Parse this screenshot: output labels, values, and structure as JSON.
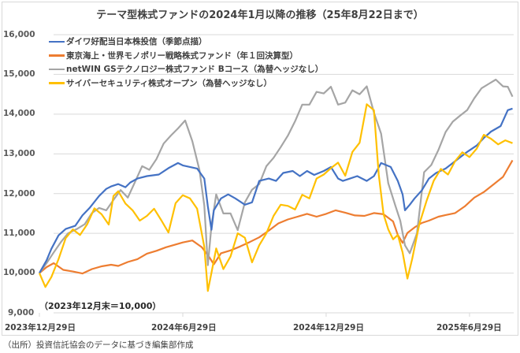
{
  "chart_data": {
    "type": "line",
    "title": "テーマ型株式ファンドの2024年1月以降の推移（25年8月22日まで）",
    "xlabel": "",
    "ylabel": "",
    "ylim": [
      9000,
      16000
    ],
    "yticks": [
      16000,
      15000,
      14000,
      13000,
      12000,
      11000,
      10000,
      9000
    ],
    "ytick_labels": [
      "16,000",
      "15,000",
      "14,000",
      "13,000",
      "12,000",
      "11,000",
      "10,000",
      "9,000"
    ],
    "xlim_months": [
      0,
      19.8
    ],
    "xticks_months": [
      0,
      6,
      12,
      18
    ],
    "xtick_labels": [
      "2023年12月29日",
      "2024年6月29日",
      "2024年12月29日",
      "2025年6月29日"
    ],
    "grid": true,
    "legend_position": "top-left",
    "annotation": "（2023年12月末＝10,000）",
    "x_unit": "months since 2023-12-29",
    "series": [
      {
        "name": "ダイワ好配当日本株投信（季節点描）",
        "color": "#4472c4",
        "x": [
          0,
          0.3,
          0.5,
          0.8,
          1.1,
          1.5,
          1.8,
          2.1,
          2.5,
          2.8,
          3.0,
          3.3,
          3.6,
          3.8,
          4.1,
          4.5,
          5.0,
          5.4,
          5.8,
          6.0,
          6.3,
          6.6,
          6.9,
          7.05,
          7.2,
          7.3,
          7.6,
          7.9,
          8.2,
          8.6,
          8.9,
          9.2,
          9.6,
          9.9,
          10.2,
          10.6,
          10.9,
          11.2,
          11.5,
          11.9,
          12.2,
          12.5,
          12.7,
          13.0,
          13.3,
          13.7,
          14.0,
          14.3,
          14.7,
          15.0,
          15.2,
          15.3,
          15.5,
          15.7,
          16.0,
          16.3,
          16.6,
          17.0,
          17.3,
          17.6,
          17.9,
          18.3,
          18.6,
          18.9,
          19.3,
          19.6,
          19.8
        ],
        "values": [
          10000,
          10320,
          10610,
          10950,
          11110,
          11190,
          11450,
          11640,
          11940,
          12120,
          12180,
          12240,
          12160,
          12280,
          12380,
          12440,
          12480,
          12640,
          12770,
          12710,
          12670,
          12630,
          12380,
          11680,
          11090,
          11580,
          11880,
          11980,
          11880,
          11720,
          11780,
          12320,
          12380,
          12320,
          12520,
          12570,
          12440,
          12570,
          12470,
          12570,
          12670,
          12380,
          12320,
          12380,
          12440,
          12320,
          12440,
          12770,
          12670,
          12320,
          11980,
          11580,
          11720,
          11880,
          12080,
          12380,
          12520,
          12630,
          12770,
          12910,
          13050,
          13210,
          13400,
          13560,
          13700,
          14100,
          14140
        ]
      },
      {
        "name": "東京海上・世界モノポリー戦略株式ファンド（年１回決算型）",
        "color": "#ed7d31",
        "x": [
          0,
          0.3,
          0.6,
          1.0,
          1.4,
          1.8,
          2.2,
          2.6,
          3.0,
          3.3,
          3.7,
          4.1,
          4.5,
          4.9,
          5.3,
          5.7,
          6.0,
          6.4,
          6.8,
          7.1,
          7.3,
          7.6,
          8.0,
          8.4,
          8.8,
          9.2,
          9.6,
          10.0,
          10.4,
          10.8,
          11.2,
          11.6,
          12.0,
          12.4,
          12.8,
          13.2,
          13.6,
          14.0,
          14.4,
          14.8,
          15.0,
          15.2,
          15.4,
          15.7,
          16.0,
          16.3,
          16.7,
          17.0,
          17.4,
          17.8,
          18.2,
          18.6,
          19.0,
          19.4,
          19.8
        ],
        "values": [
          10000,
          10150,
          10250,
          10080,
          10040,
          9990,
          10100,
          10170,
          10210,
          10180,
          10280,
          10350,
          10490,
          10560,
          10650,
          10720,
          10770,
          10820,
          10650,
          10410,
          10220,
          10500,
          10570,
          10670,
          10780,
          10900,
          11070,
          11250,
          11350,
          11420,
          11490,
          11420,
          11490,
          11580,
          11520,
          11450,
          11440,
          11510,
          11480,
          11300,
          10960,
          10760,
          11010,
          11150,
          11260,
          11320,
          11420,
          11460,
          11510,
          11680,
          11900,
          12040,
          12230,
          12420,
          12840
        ]
      },
      {
        "name": "netWIN GSテクノロジー株式ファンド Bコース（為替ヘッジなし）",
        "color": "#a5a5a5",
        "x": [
          0,
          0.3,
          0.6,
          0.9,
          1.2,
          1.6,
          1.9,
          2.2,
          2.5,
          2.8,
          3.1,
          3.4,
          3.7,
          4.0,
          4.3,
          4.6,
          4.9,
          5.2,
          5.5,
          5.8,
          6.1,
          6.4,
          6.7,
          6.9,
          7.05,
          7.2,
          7.4,
          7.7,
          8.0,
          8.3,
          8.6,
          8.9,
          9.2,
          9.5,
          9.8,
          10.1,
          10.4,
          10.7,
          11.0,
          11.3,
          11.6,
          11.9,
          12.2,
          12.5,
          12.8,
          13.1,
          13.4,
          13.7,
          14.0,
          14.3,
          14.6,
          14.9,
          15.1,
          15.3,
          15.5,
          15.8,
          16.1,
          16.4,
          16.7,
          17.0,
          17.3,
          17.6,
          17.9,
          18.2,
          18.5,
          18.8,
          19.1,
          19.4,
          19.6,
          19.8
        ],
        "values": [
          10000,
          10250,
          10520,
          10780,
          11000,
          11120,
          11230,
          11510,
          11640,
          11580,
          11840,
          12090,
          11900,
          12290,
          12690,
          12600,
          12870,
          13260,
          13460,
          13640,
          13840,
          13320,
          12590,
          11700,
          10200,
          11190,
          11980,
          11500,
          11500,
          11080,
          11780,
          12100,
          12240,
          12690,
          12900,
          13170,
          13460,
          13820,
          14240,
          14240,
          14560,
          14520,
          14690,
          14240,
          14290,
          14600,
          14500,
          14700,
          14040,
          13510,
          12260,
          11690,
          11320,
          10700,
          10500,
          11000,
          12540,
          12720,
          13100,
          13550,
          13810,
          13960,
          14100,
          14400,
          14650,
          14760,
          14870,
          14700,
          14690,
          14440
        ]
      },
      {
        "name": "サイバーセキュリティ株式オープン（為替ヘッジなし）",
        "color": "#ffc000",
        "x": [
          0,
          0.25,
          0.5,
          0.8,
          1.1,
          1.4,
          1.7,
          2.0,
          2.3,
          2.6,
          2.9,
          3.1,
          3.3,
          3.6,
          3.9,
          4.2,
          4.5,
          4.8,
          5.1,
          5.4,
          5.7,
          6.0,
          6.3,
          6.6,
          6.9,
          7.05,
          7.2,
          7.4,
          7.7,
          8.0,
          8.3,
          8.6,
          8.9,
          9.2,
          9.5,
          9.8,
          10.1,
          10.4,
          10.7,
          11.0,
          11.3,
          11.6,
          11.9,
          12.2,
          12.5,
          12.8,
          13.1,
          13.4,
          13.7,
          14.0,
          14.2,
          14.4,
          14.6,
          14.8,
          15.0,
          15.2,
          15.4,
          15.6,
          15.9,
          16.2,
          16.5,
          16.8,
          17.1,
          17.4,
          17.7,
          18.0,
          18.3,
          18.6,
          18.9,
          19.2,
          19.5,
          19.8
        ],
        "values": [
          10000,
          9650,
          9900,
          10350,
          10880,
          11100,
          10960,
          11230,
          11630,
          11480,
          11220,
          11940,
          12060,
          11750,
          11580,
          11320,
          11440,
          11620,
          11330,
          11020,
          11760,
          11960,
          11880,
          11620,
          10660,
          9550,
          10010,
          10620,
          10100,
          10420,
          11000,
          10890,
          10270,
          10700,
          11000,
          11440,
          11720,
          11690,
          11600,
          11970,
          11880,
          12380,
          12480,
          12640,
          12780,
          12450,
          13050,
          13280,
          14250,
          14100,
          12480,
          11480,
          11100,
          10850,
          10960,
          10520,
          9860,
          10350,
          11230,
          11810,
          12320,
          12620,
          12480,
          12820,
          13040,
          12920,
          13130,
          13480,
          13380,
          13240,
          13340,
          13270
        ]
      }
    ]
  },
  "footer": {
    "source": "（出所）投資信託協会のデータに基づき編集部作成"
  }
}
